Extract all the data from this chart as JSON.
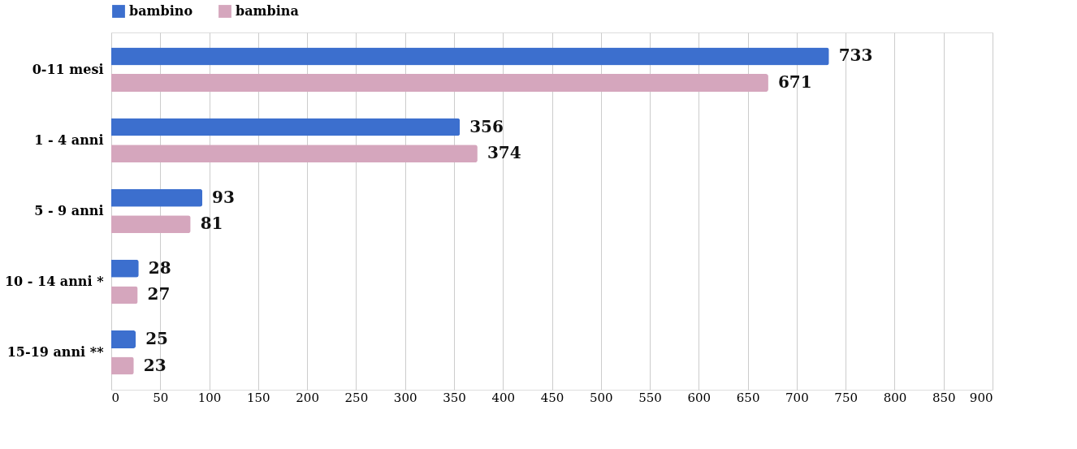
{
  "chart_data": {
    "type": "bar",
    "orientation": "horizontal",
    "categories": [
      "0-11 mesi",
      "1 - 4 anni",
      "5 - 9 anni",
      "10 - 14 anni *",
      "15-19 anni **"
    ],
    "series": [
      {
        "name": "bambino",
        "color": "#3c6fce",
        "values": [
          733,
          356,
          93,
          28,
          25
        ]
      },
      {
        "name": "bambina",
        "color": "#d5a6bd",
        "values": [
          671,
          374,
          81,
          27,
          23
        ]
      }
    ],
    "xlim": [
      0,
      900
    ],
    "xticks": [
      0,
      50,
      100,
      150,
      200,
      250,
      300,
      350,
      400,
      450,
      500,
      550,
      600,
      650,
      700,
      750,
      800,
      850,
      900
    ],
    "grid": "x",
    "legend": "top",
    "data_labels": true
  }
}
